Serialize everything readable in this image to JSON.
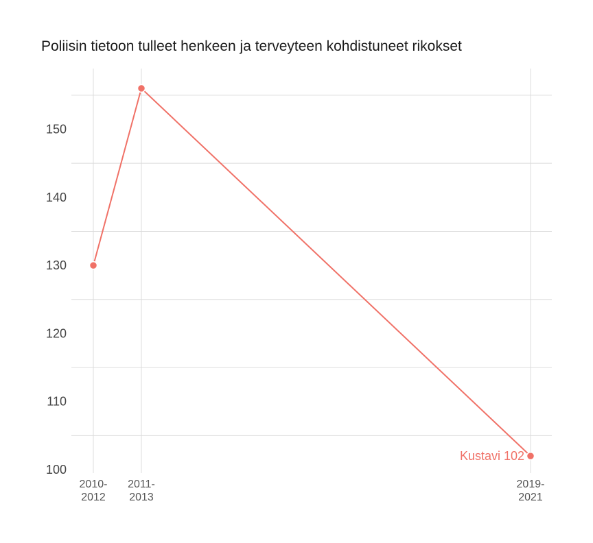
{
  "chart_data": {
    "type": "line",
    "title": "Poliisin tietoon tulleet henkeen ja terveyteen kohdistuneet rikokset",
    "x": [
      2011,
      2012,
      2020
    ],
    "x_tick_labels": [
      [
        "2010-",
        "2012"
      ],
      [
        "2011-",
        "2013"
      ],
      [
        "2019-",
        "2021"
      ]
    ],
    "series": [
      {
        "values": [
          130,
          156,
          102
        ],
        "color": "#f07167"
      }
    ],
    "annotation": {
      "point_index": 2,
      "text": "Kustavi 102"
    },
    "y_ticks": [
      100,
      110,
      120,
      130,
      140,
      150
    ],
    "ylim": [
      100,
      156
    ],
    "grid": true,
    "xlabel": "",
    "ylabel": ""
  }
}
